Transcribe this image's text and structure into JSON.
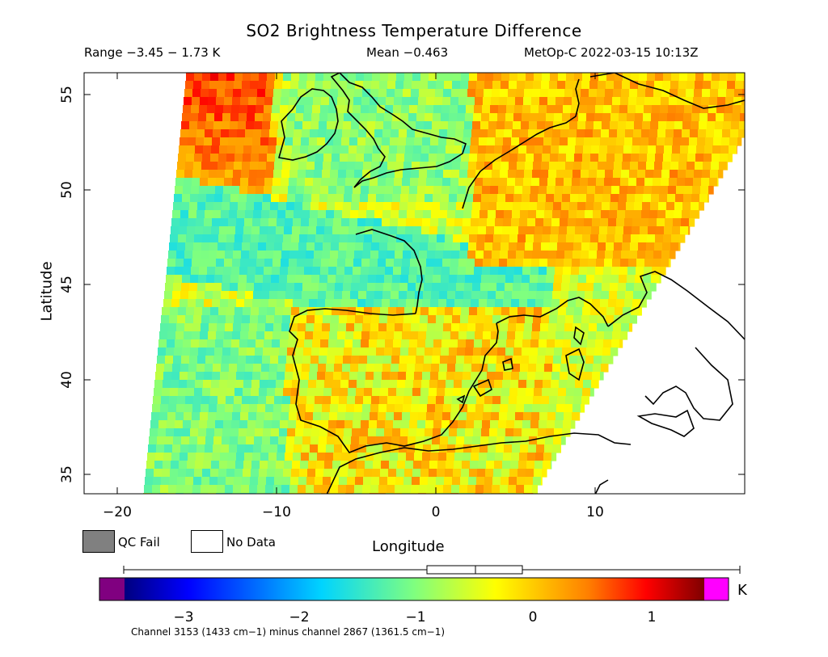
{
  "title": "SO2 Brightness Temperature Difference",
  "header": {
    "range": "Range −3.45 − 1.73 K",
    "mean": "Mean −0.463",
    "satellite_time": "MetOp-C 2022-03-15 10:13Z"
  },
  "axes": {
    "xlabel": "Longitude",
    "ylabel": "Latitude",
    "x_ticks": [
      "−20",
      "−10",
      "0",
      "10"
    ],
    "y_ticks": [
      "35",
      "40",
      "45",
      "50",
      "55"
    ],
    "xlim": [
      -22,
      19.5
    ],
    "ylim": [
      34,
      56.2
    ]
  },
  "legend": {
    "qc_fail": "QC Fail",
    "no_data": "No Data",
    "qc_fail_color": "#808080",
    "no_data_color": "#ffffff"
  },
  "colorbar": {
    "ticks": [
      "−3",
      "−2",
      "−1",
      "0",
      "1"
    ],
    "unit": "K",
    "low_color": "#800080",
    "high_color": "#ff00ff",
    "range": [
      -3.5,
      1.5
    ]
  },
  "footnote": "Channel 3153 (1433 cm−1) minus channel 2867 (1361.5 cm−1)"
}
